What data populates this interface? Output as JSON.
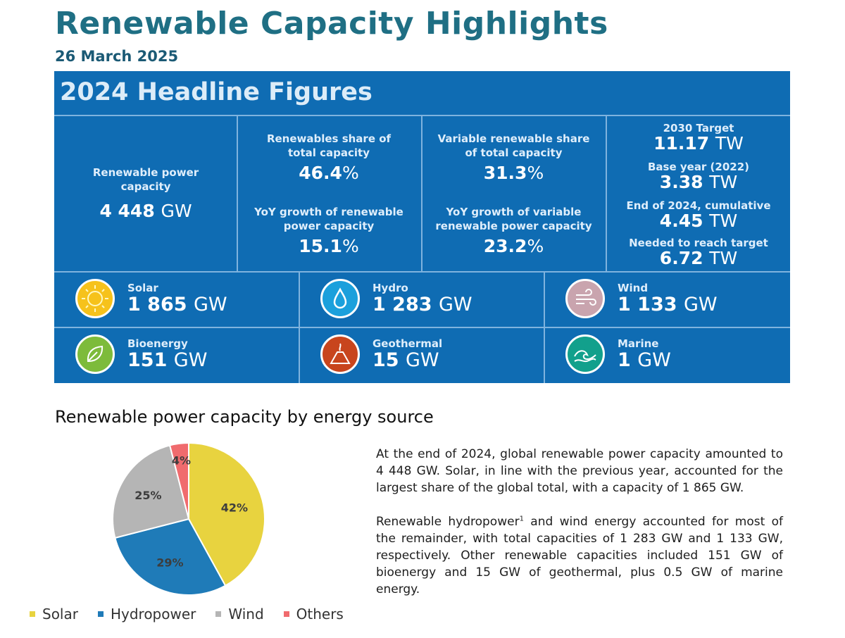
{
  "header": {
    "title": "Renewable Capacity Highlights",
    "date": "26 March 2025"
  },
  "panel": {
    "title": "2024 Headline Figures",
    "capacity": {
      "label": "Renewable power capacity",
      "value": "4 448",
      "unit": "GW"
    },
    "share": {
      "label": "Renewables share of total capacity",
      "value": "46.4",
      "unit": "%"
    },
    "growth": {
      "label": "YoY growth of renewable power capacity",
      "value": "15.1",
      "unit": "%"
    },
    "var_share": {
      "label": "Variable renewable share of total capacity",
      "value": "31.3",
      "unit": "%"
    },
    "var_growth": {
      "label": "YoY growth of variable renewable power capacity",
      "value": "23.2",
      "unit": "%"
    },
    "targets": [
      {
        "label": "2030 Target",
        "value": "11.17",
        "unit": "TW"
      },
      {
        "label": "Base year (2022)",
        "value": "3.38",
        "unit": "TW"
      },
      {
        "label": "End of 2024, cumulative",
        "value": "4.45",
        "unit": "TW"
      },
      {
        "label": "Needed to reach target",
        "value": "6.72",
        "unit": "TW"
      }
    ],
    "sources": [
      {
        "name": "Solar",
        "value": "1 865",
        "unit": "GW",
        "icon": "sun-icon",
        "color": "#f6c21b"
      },
      {
        "name": "Hydro",
        "value": "1 283",
        "unit": "GW",
        "icon": "water-drop-icon",
        "color": "#1ba0dc"
      },
      {
        "name": "Wind",
        "value": "1 133",
        "unit": "GW",
        "icon": "wind-icon",
        "color": "#c9a4ae"
      },
      {
        "name": "Bioenergy",
        "value": "151",
        "unit": "GW",
        "icon": "leaf-icon",
        "color": "#7dbb3b"
      },
      {
        "name": "Geothermal",
        "value": "15",
        "unit": "GW",
        "icon": "volcano-icon",
        "color": "#c8451d"
      },
      {
        "name": "Marine",
        "value": "1",
        "unit": "GW",
        "icon": "wave-icon",
        "color": "#12a08c"
      }
    ]
  },
  "section_title": "Renewable power capacity by energy source",
  "chart_data": {
    "type": "pie",
    "labels": [
      "Solar",
      "Hydropower",
      "Wind",
      "Others"
    ],
    "values": [
      42,
      29,
      25,
      4
    ],
    "data_labels": [
      "42%",
      "29%",
      "25%",
      "4%"
    ],
    "colors": [
      "#e8d33f",
      "#1f7bb8",
      "#b5b5b5",
      "#f06b6e"
    ],
    "legend_position": "bottom"
  },
  "text": {
    "p1": "At the end of 2024, global renewable power capacity amounted to 4 448 GW. Solar, in line with the previous year, accounted for the largest share of the global total, with a capacity of 1 865 GW.",
    "p2_start": "Renewable hydropower",
    "p2_footnote": "1",
    "p2_rest": " and wind energy accounted for most of the remainder, with total capacities of 1 283 GW and 1 133 GW, respectively. Other renewable capacities included 151 GW of bioenergy and 15 GW of geothermal, plus 0.5 GW of marine energy."
  }
}
